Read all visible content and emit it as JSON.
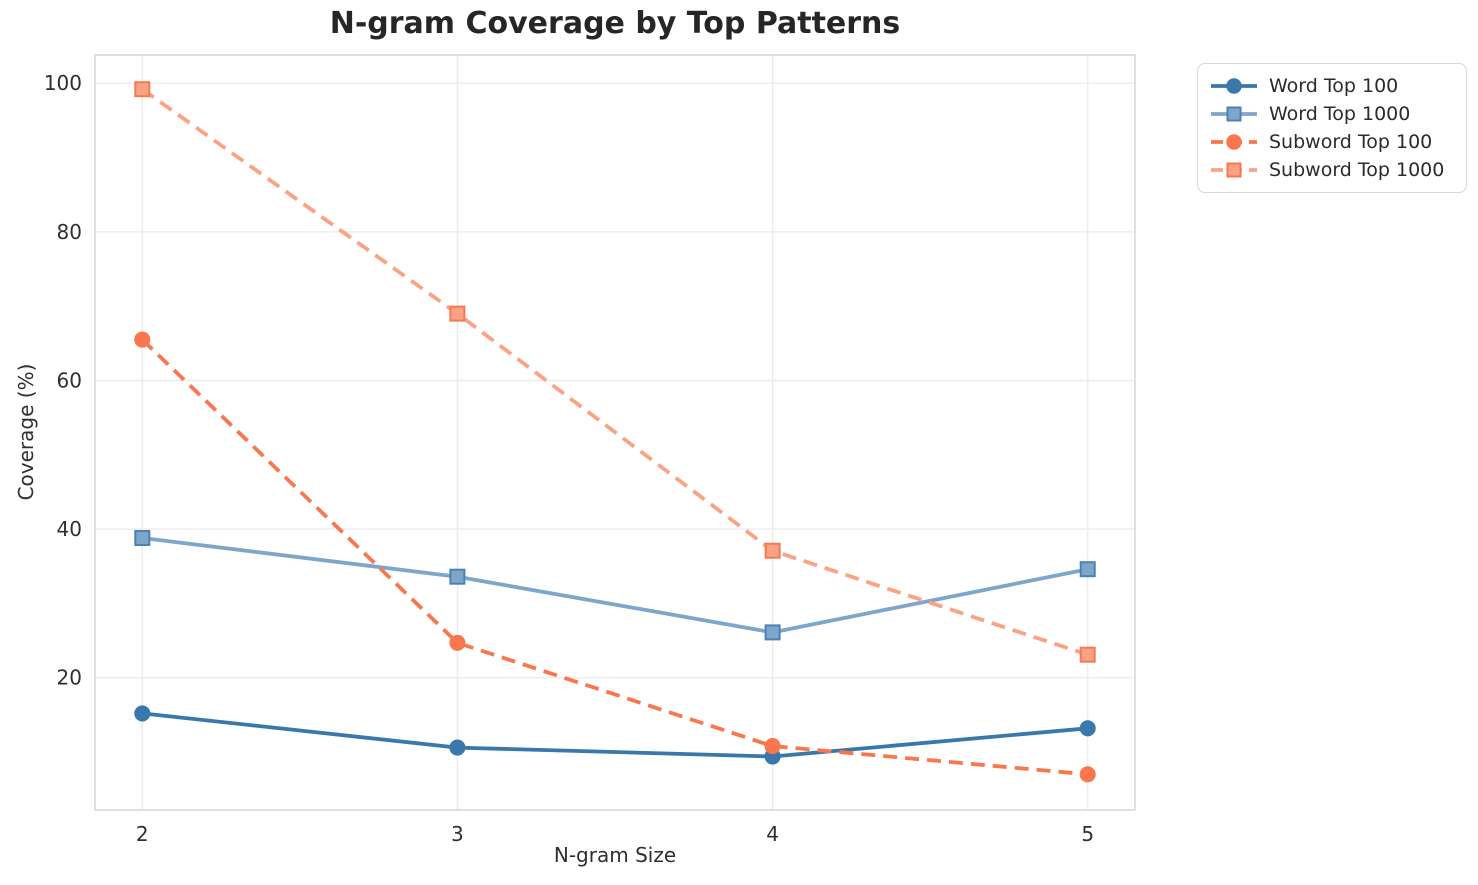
{
  "chart_data": {
    "type": "line",
    "title": "N-gram Coverage by Top Patterns",
    "xlabel": "N-gram Size",
    "ylabel": "Coverage (%)",
    "x": [
      2,
      3,
      4,
      5
    ],
    "x_tick_labels": [
      "2",
      "3",
      "4",
      "5"
    ],
    "y_ticks": [
      20,
      40,
      60,
      80,
      100
    ],
    "xlim": [
      1.85,
      5.15
    ],
    "ylim": [
      2.2,
      103.8
    ],
    "grid": true,
    "legend_position": "outside-upper-right",
    "series": [
      {
        "name": "Word Top 100",
        "values": [
          15.2,
          10.6,
          9.4,
          13.2
        ],
        "color": "#3A78A9",
        "marker_edge": "#3A78A9",
        "line_style": "solid",
        "marker": "circle"
      },
      {
        "name": "Word Top 1000",
        "values": [
          38.8,
          33.6,
          26.1,
          34.6
        ],
        "color": "#7EA6CB",
        "marker_edge": "#4D81AF",
        "line_style": "solid",
        "marker": "square"
      },
      {
        "name": "Subword Top 100",
        "values": [
          65.5,
          24.7,
          10.8,
          7.0
        ],
        "color": "#F9764E",
        "marker_edge": "#F9764E",
        "line_style": "dashed",
        "marker": "circle"
      },
      {
        "name": "Subword Top 1000",
        "values": [
          99.2,
          69.0,
          37.1,
          23.1
        ],
        "color": "#FCA284",
        "marker_edge": "#F5794F",
        "line_style": "dashed",
        "marker": "square"
      }
    ]
  },
  "theme": {
    "background": "#FFFFFF",
    "grid_color": "#ECECEC",
    "spine_color": "#D9D9D9",
    "title_color": "#262626",
    "text_color": "#2F2F2F"
  }
}
